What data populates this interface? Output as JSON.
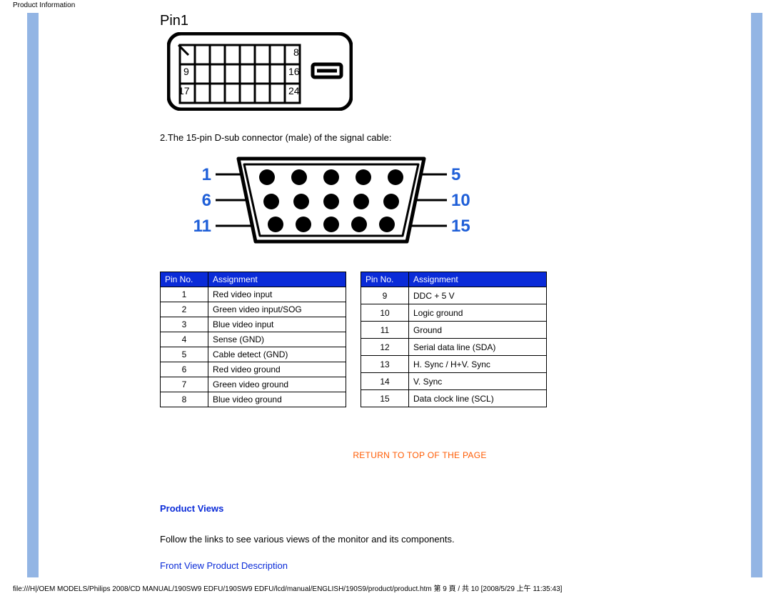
{
  "header": {
    "title": "Product Information"
  },
  "footer": {
    "path": "file:///H|/OEM MODELS/Philips 2008/CD MANUAL/190SW9 EDFU/190SW9 EDFU/lcd/manual/ENGLISH/190S9/product/product.htm 第 9 頁 / 共 10  [2008/5/29 上午 11:35:43]"
  },
  "stripe_color": "#93b5e4",
  "dvi": {
    "pin1_label": "Pin1",
    "corner_labels": {
      "tr": "8",
      "ml": "9",
      "mr": "16",
      "bl": "17",
      "br": "24"
    }
  },
  "dsub_text": "2.The 15-pin D-sub connector (male) of the signal cable:",
  "vga": {
    "left_labels": [
      "1",
      "6",
      "11"
    ],
    "right_labels": [
      "5",
      "10",
      "15"
    ],
    "label_color": "#1f5fd8",
    "label_fontsize": 24,
    "pin_fill": "#000000"
  },
  "table_header_bg": "#0a2bd8",
  "table_header_fg": "#ffffff",
  "columns": [
    "Pin No.",
    "Assignment"
  ],
  "left_table": [
    [
      "1",
      "Red video input"
    ],
    [
      "2",
      "Green video input/SOG"
    ],
    [
      "3",
      "Blue video input"
    ],
    [
      "4",
      "Sense (GND)"
    ],
    [
      "5",
      "Cable detect (GND)"
    ],
    [
      "6",
      "Red video ground"
    ],
    [
      "7",
      "Green video ground"
    ],
    [
      "8",
      "Blue video ground"
    ]
  ],
  "right_table": [
    [
      "9",
      "DDC + 5 V"
    ],
    [
      "10",
      "Logic ground"
    ],
    [
      "11",
      "Ground"
    ],
    [
      "12",
      "Serial data line (SDA)"
    ],
    [
      "13",
      "H. Sync / H+V. Sync"
    ],
    [
      "14",
      "V. Sync"
    ],
    [
      "15",
      "Data clock line (SCL)"
    ]
  ],
  "return_link": "RETURN TO TOP OF THE PAGE",
  "return_color": "#ff5a00",
  "product_views_heading": "Product Views",
  "follow_text": "Follow the links to see various views of the monitor and its components.",
  "front_view_link": "Front View Product Description",
  "link_color": "#0a2bd8"
}
